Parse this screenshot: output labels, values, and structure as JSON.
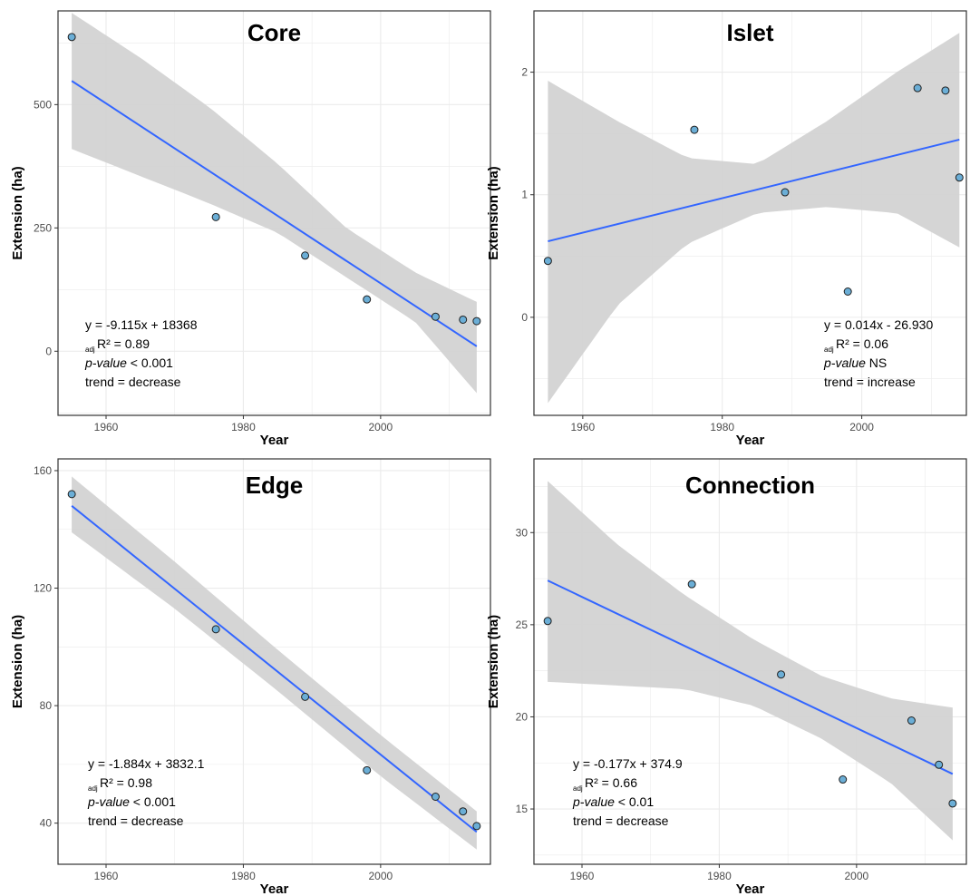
{
  "chart_data": [
    {
      "type": "scatter",
      "title": "Core",
      "xlabel": "Year",
      "ylabel": "Extension (ha)",
      "x_ticks": [
        1960,
        1980,
        2000
      ],
      "y_ticks": [
        0,
        250,
        500
      ],
      "xlim": [
        1953,
        2016
      ],
      "ylim": [
        -130,
        690
      ],
      "points": [
        {
          "x": 1955,
          "y": 637
        },
        {
          "x": 1976,
          "y": 272
        },
        {
          "x": 1989,
          "y": 194
        },
        {
          "x": 1998,
          "y": 105
        },
        {
          "x": 2008,
          "y": 70
        },
        {
          "x": 2012,
          "y": 64
        },
        {
          "x": 2014,
          "y": 61
        }
      ],
      "fit": {
        "x": [
          1955,
          2014
        ],
        "y": [
          548,
          10
        ]
      },
      "band": {
        "x": [
          1955,
          1965,
          1975,
          1985,
          1995,
          2005,
          2014
        ],
        "lower": [
          410,
          355,
          300,
          240,
          150,
          60,
          -85
        ],
        "upper": [
          686,
          595,
          495,
          380,
          250,
          160,
          100
        ]
      },
      "annotation": {
        "equation": "y = -9.115x + 18368",
        "r2_sub": "adj",
        "r2_text": "R² = 0.89",
        "pvalue_label": "p-value",
        "pvalue_value": " < 0.001",
        "trend": "trend = decrease"
      },
      "grid": true,
      "colors": {
        "line": "#3366ff",
        "band": "#d3d3d3",
        "point_fill": "#6baed6",
        "point_stroke": "#1f1f1f"
      }
    },
    {
      "type": "scatter",
      "title": "Islet",
      "xlabel": "Year",
      "ylabel": "Extension (ha)",
      "x_ticks": [
        1960,
        1980,
        2000
      ],
      "y_ticks": [
        0,
        1,
        2
      ],
      "xlim": [
        1953,
        2015
      ],
      "ylim": [
        -0.8,
        2.5
      ],
      "points": [
        {
          "x": 1955,
          "y": 0.46
        },
        {
          "x": 1976,
          "y": 1.53
        },
        {
          "x": 1989,
          "y": 1.02
        },
        {
          "x": 1998,
          "y": 0.21
        },
        {
          "x": 2008,
          "y": 1.87
        },
        {
          "x": 2012,
          "y": 1.85
        },
        {
          "x": 2014,
          "y": 1.14
        }
      ],
      "fit": {
        "x": [
          1955,
          2014
        ],
        "y": [
          0.62,
          1.45
        ]
      },
      "band": {
        "x": [
          1955,
          1965,
          1975,
          1985,
          1995,
          2005,
          2014
        ],
        "lower": [
          -0.7,
          0.1,
          0.6,
          0.85,
          0.9,
          0.85,
          0.57
        ],
        "upper": [
          1.93,
          1.6,
          1.3,
          1.25,
          1.6,
          2.0,
          2.32
        ]
      },
      "annotation": {
        "equation": "y = 0.014x - 26.930",
        "r2_sub": "adj",
        "r2_text": "R² = 0.06",
        "pvalue_label": "p-value",
        "pvalue_value": " NS",
        "trend": "trend = increase"
      },
      "grid": true,
      "colors": {
        "line": "#3366ff",
        "band": "#d3d3d3",
        "point_fill": "#6baed6",
        "point_stroke": "#1f1f1f"
      }
    },
    {
      "type": "scatter",
      "title": "Edge",
      "xlabel": "Year",
      "ylabel": "Extension (ha)",
      "x_ticks": [
        1960,
        1980,
        2000
      ],
      "y_ticks": [
        40,
        80,
        120,
        160
      ],
      "xlim": [
        1953,
        2016
      ],
      "ylim": [
        26,
        164
      ],
      "points": [
        {
          "x": 1955,
          "y": 152
        },
        {
          "x": 1976,
          "y": 106
        },
        {
          "x": 1989,
          "y": 83
        },
        {
          "x": 1998,
          "y": 58
        },
        {
          "x": 2008,
          "y": 49
        },
        {
          "x": 2012,
          "y": 44
        },
        {
          "x": 2014,
          "y": 39
        }
      ],
      "fit": {
        "x": [
          1955,
          2014
        ],
        "y": [
          148,
          37
        ]
      },
      "band": {
        "x": [
          1955,
          1970,
          1985,
          2000,
          2014
        ],
        "lower": [
          139,
          113,
          85,
          56,
          31
        ],
        "upper": [
          158,
          129,
          99,
          70,
          44
        ]
      },
      "annotation": {
        "equation": "y = -1.884x + 3832.1",
        "r2_sub": "adj",
        "r2_text": "R² = 0.98",
        "pvalue_label": "p-value",
        "pvalue_value": " < 0.001",
        "trend": "trend = decrease"
      },
      "grid": true,
      "colors": {
        "line": "#3366ff",
        "band": "#d3d3d3",
        "point_fill": "#6baed6",
        "point_stroke": "#1f1f1f"
      }
    },
    {
      "type": "scatter",
      "title": "Connection",
      "xlabel": "Year",
      "ylabel": "Extension (ha)",
      "x_ticks": [
        1960,
        1980,
        2000
      ],
      "y_ticks": [
        15,
        20,
        25,
        30
      ],
      "xlim": [
        1953,
        2016
      ],
      "ylim": [
        12,
        34
      ],
      "points": [
        {
          "x": 1955,
          "y": 25.2
        },
        {
          "x": 1976,
          "y": 27.2
        },
        {
          "x": 1989,
          "y": 22.3
        },
        {
          "x": 1998,
          "y": 16.6
        },
        {
          "x": 2008,
          "y": 19.8
        },
        {
          "x": 2012,
          "y": 17.4
        },
        {
          "x": 2014,
          "y": 15.3
        }
      ],
      "fit": {
        "x": [
          1955,
          2014
        ],
        "y": [
          27.4,
          16.9
        ]
      },
      "band": {
        "x": [
          1955,
          1965,
          1975,
          1985,
          1995,
          2005,
          2014
        ],
        "lower": [
          21.9,
          21.7,
          21.5,
          20.6,
          18.8,
          16.4,
          13.3
        ],
        "upper": [
          32.8,
          29.4,
          26.6,
          24.2,
          22.2,
          21.0,
          20.5
        ]
      },
      "annotation": {
        "equation": "y = -0.177x + 374.9",
        "r2_sub": "adj",
        "r2_text": "R² = 0.66",
        "pvalue_label": "p-value",
        "pvalue_value": " < 0.01",
        "trend": "trend = decrease"
      },
      "grid": true,
      "colors": {
        "line": "#3366ff",
        "band": "#d3d3d3",
        "point_fill": "#6baed6",
        "point_stroke": "#1f1f1f"
      }
    }
  ]
}
